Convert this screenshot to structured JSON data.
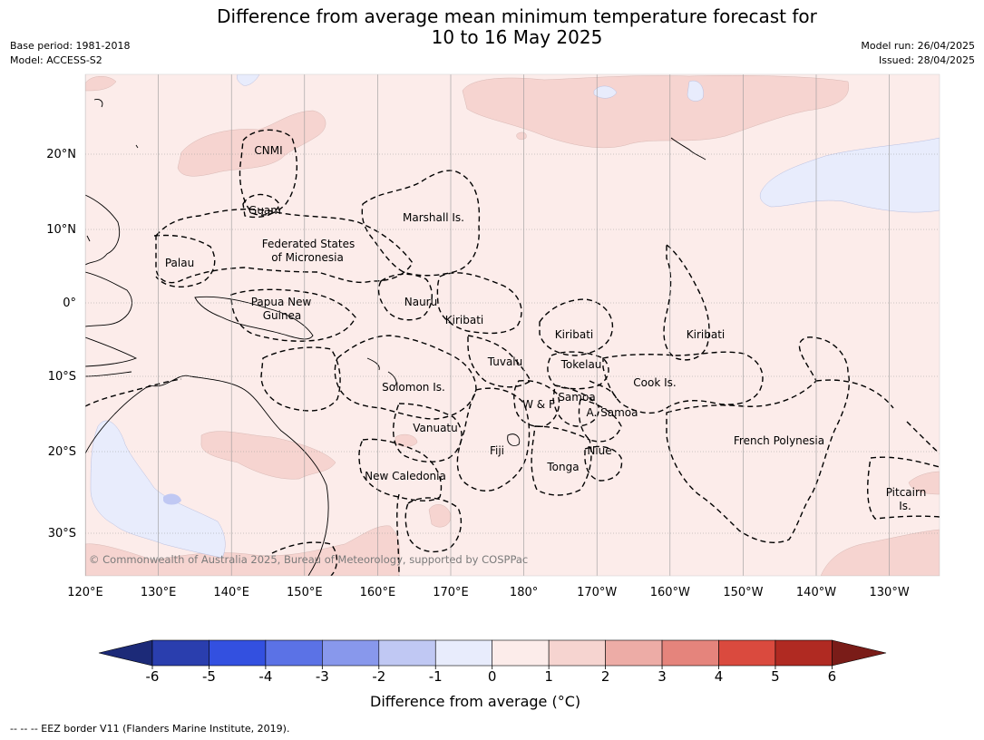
{
  "header": {
    "title_line1": "Difference from average mean minimum temperature forecast for",
    "title_line2": "10 to 16 May 2025",
    "base_period": "Base period: 1981-2018",
    "model": "Model: ACCESS-S2",
    "model_run": "Model run: 26/04/2025",
    "issued": "Issued: 28/04/2025"
  },
  "map": {
    "lon_ticks": [
      "120°E",
      "130°E",
      "140°E",
      "150°E",
      "160°E",
      "170°E",
      "180°",
      "170°W",
      "160°W",
      "150°W",
      "140°W",
      "130°W"
    ],
    "lat_ticks": [
      "20°N",
      "10°N",
      "0°",
      "10°S",
      "20°S",
      "30°S"
    ],
    "place_labels": [
      {
        "id": "cnmi",
        "text": "CNMI"
      },
      {
        "id": "guam",
        "text": "Guam"
      },
      {
        "id": "marshall",
        "text": "Marshall Is."
      },
      {
        "id": "fsm1",
        "text": "Federated States"
      },
      {
        "id": "fsm2",
        "text": "of Micronesia"
      },
      {
        "id": "palau",
        "text": "Palau"
      },
      {
        "id": "png1",
        "text": "Papua New"
      },
      {
        "id": "png2",
        "text": "Guinea"
      },
      {
        "id": "nauru",
        "text": "Nauru"
      },
      {
        "id": "kiribati-w",
        "text": "Kiribati"
      },
      {
        "id": "kiribati-c",
        "text": "Kiribati"
      },
      {
        "id": "kiribati-e",
        "text": "Kiribati"
      },
      {
        "id": "tuvalu",
        "text": "Tuvalu"
      },
      {
        "id": "tokelau",
        "text": "Tokelau"
      },
      {
        "id": "cook",
        "text": "Cook Is."
      },
      {
        "id": "solomon",
        "text": "Solomon Is."
      },
      {
        "id": "wf",
        "text": "W & F"
      },
      {
        "id": "samoa",
        "text": "Samoa"
      },
      {
        "id": "asamoa",
        "text": "A. Samoa"
      },
      {
        "id": "vanuatu",
        "text": "Vanuatu"
      },
      {
        "id": "fiji",
        "text": "Fiji"
      },
      {
        "id": "niue",
        "text": "Niue"
      },
      {
        "id": "tonga",
        "text": "Tonga"
      },
      {
        "id": "fp",
        "text": "French Polynesia"
      },
      {
        "id": "newcal",
        "text": "New Caledonia"
      },
      {
        "id": "pitcairn1",
        "text": "Pitcairn"
      },
      {
        "id": "pitcairn2",
        "text": "Is."
      }
    ],
    "copyright": "© Commonwealth of Australia 2025, Bureau of Meteorology, supported by COSPPac"
  },
  "colorbar": {
    "ticks": [
      "-6",
      "-5",
      "-4",
      "-3",
      "-2",
      "-1",
      "0",
      "1",
      "2",
      "3",
      "4",
      "5",
      "6"
    ],
    "low_extend_color": "#1c2a78",
    "high_extend_color": "#7a1c18",
    "colors": [
      "#2a3eae",
      "#3350e0",
      "#5b72e6",
      "#8898ec",
      "#c0c8f3",
      "#e8ecfc",
      "#fcecea",
      "#f6d4d0",
      "#edaca6",
      "#e5847c",
      "#da4a3e",
      "#b02a22"
    ],
    "title": "Difference from average (°C)"
  },
  "footnote": "--  --  -- EEZ border V11 (Flanders Marine Institute, 2019)."
}
